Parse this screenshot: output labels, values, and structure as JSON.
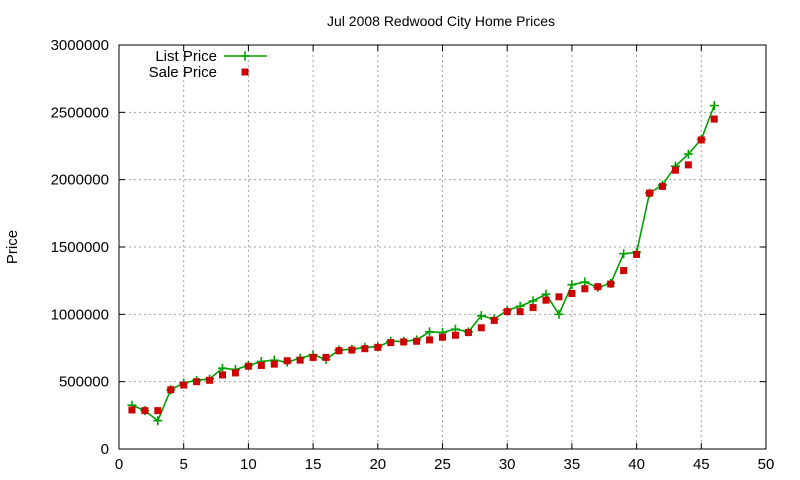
{
  "chart_data": {
    "type": "scatter",
    "title": "Jul 2008 Redwood City Home Prices",
    "xlabel": "",
    "ylabel": "Price",
    "xlim": [
      0,
      50
    ],
    "ylim": [
      0,
      3000000
    ],
    "xticks": [
      0,
      5,
      10,
      15,
      20,
      25,
      30,
      35,
      40,
      45,
      50
    ],
    "yticks": [
      0,
      500000,
      1000000,
      1500000,
      2000000,
      2500000,
      3000000
    ],
    "grid": true,
    "legend_position": "top-left",
    "x": [
      1,
      2,
      3,
      4,
      5,
      6,
      7,
      8,
      9,
      10,
      11,
      12,
      13,
      14,
      15,
      16,
      17,
      18,
      19,
      20,
      21,
      22,
      23,
      24,
      25,
      26,
      27,
      28,
      29,
      30,
      31,
      32,
      33,
      34,
      35,
      36,
      37,
      38,
      39,
      40,
      41,
      42,
      43,
      44,
      45,
      46
    ],
    "series": [
      {
        "name": "List Price",
        "style": "linespoints",
        "marker": "plus",
        "color": "#00a000",
        "values": [
          325000,
          285000,
          210000,
          440000,
          490000,
          510000,
          520000,
          600000,
          590000,
          620000,
          650000,
          660000,
          645000,
          675000,
          700000,
          665000,
          735000,
          740000,
          755000,
          760000,
          800000,
          800000,
          810000,
          870000,
          865000,
          890000,
          870000,
          990000,
          965000,
          1030000,
          1060000,
          1100000,
          1150000,
          1000000,
          1220000,
          1240000,
          1200000,
          1230000,
          1450000,
          1460000,
          1900000,
          1960000,
          2100000,
          2190000,
          2300000,
          2550000
        ]
      },
      {
        "name": "Sale Price",
        "style": "points",
        "marker": "square",
        "color": "#cc0000",
        "values": [
          290000,
          285000,
          285000,
          440000,
          475000,
          500000,
          510000,
          550000,
          565000,
          615000,
          620000,
          630000,
          655000,
          660000,
          680000,
          680000,
          730000,
          735000,
          745000,
          755000,
          790000,
          795000,
          800000,
          810000,
          830000,
          845000,
          865000,
          900000,
          955000,
          1020000,
          1020000,
          1050000,
          1105000,
          1130000,
          1155000,
          1190000,
          1205000,
          1225000,
          1325000,
          1445000,
          1900000,
          1950000,
          2070000,
          2110000,
          2295000,
          2450000
        ]
      }
    ]
  }
}
